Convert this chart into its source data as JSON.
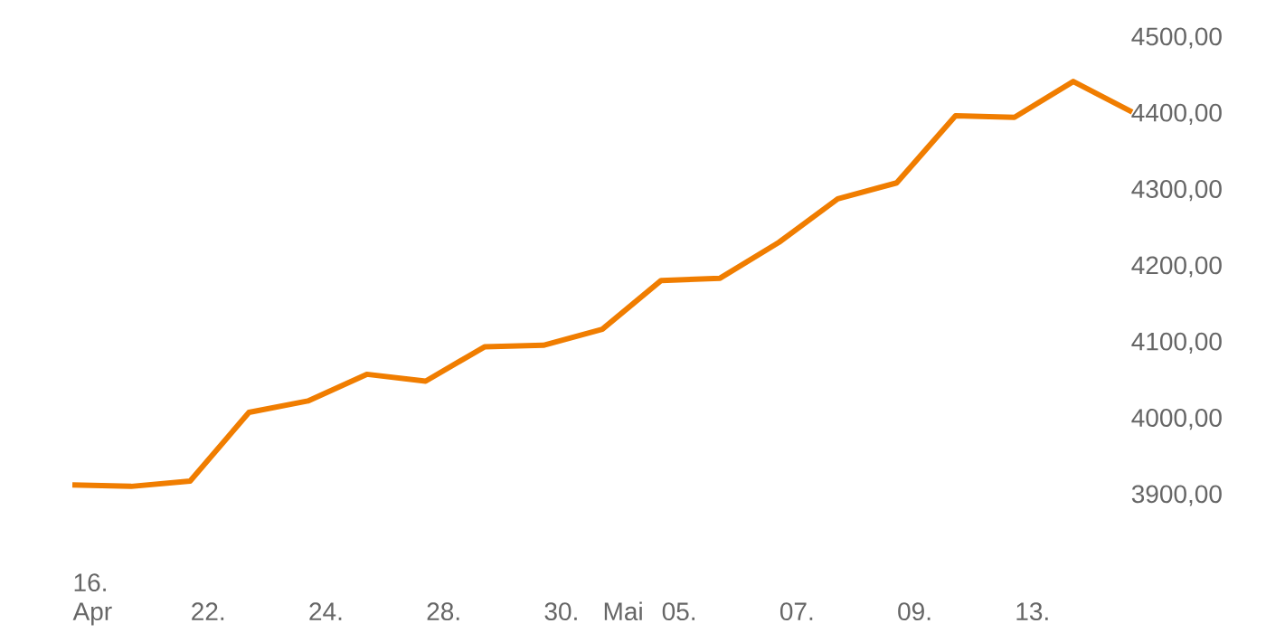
{
  "chart_data": {
    "type": "line",
    "categories": [
      "16. Apr",
      null,
      "22.",
      null,
      "24.",
      null,
      "28.",
      null,
      "30.",
      "Mai",
      "05.",
      null,
      "07.",
      null,
      "09.",
      null,
      "13.",
      null,
      null
    ],
    "series": [
      {
        "color": "#f07d00",
        "values": [
          3914,
          3912,
          3919,
          4009,
          4024,
          4059,
          4050,
          4095,
          4097,
          4118,
          4182,
          4185,
          4232,
          4289,
          4310,
          4398,
          4396,
          4443,
          4403
        ]
      }
    ],
    "ylim": [
      3900,
      4500
    ],
    "yticks": [
      {
        "value": 3900,
        "label": "3900,00"
      },
      {
        "value": 4000,
        "label": "4000,00"
      },
      {
        "value": 4100,
        "label": "4100,00"
      },
      {
        "value": 4200,
        "label": "4200,00"
      },
      {
        "value": 4300,
        "label": "4300,00"
      },
      {
        "value": 4400,
        "label": "4400,00"
      },
      {
        "value": 4500,
        "label": "4500,00"
      }
    ],
    "grid": false,
    "marker": "none",
    "line_style": "solid"
  }
}
